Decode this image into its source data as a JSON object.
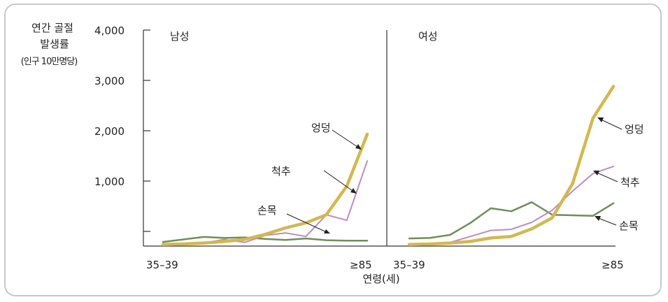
{
  "chart_data": [
    {
      "type": "line",
      "panel_label": "남성",
      "ylabel_lines": [
        "연간 골절",
        "발생률",
        "(인구 10만명당)"
      ],
      "xlabel": "연령(세)",
      "x_tick_labels": [
        "35–39",
        "≥85"
      ],
      "y_tick_labels": [
        "4,000",
        "3,000",
        "2,000",
        "1,000"
      ],
      "ylim": [
        -300,
        4000
      ],
      "x_range": [
        0,
        10
      ],
      "series": [
        {
          "name": "엉덩",
          "color": "#d4b84a",
          "x": [
            0,
            1,
            2,
            3,
            4,
            5,
            6,
            7,
            8,
            9,
            10
          ],
          "values": [
            -260,
            -250,
            -230,
            -200,
            -160,
            -60,
            70,
            170,
            330,
            900,
            1930
          ]
        },
        {
          "name": "척추",
          "color": "#b98cc4",
          "x": [
            0,
            1,
            2,
            3,
            4,
            5,
            6,
            7,
            8,
            9,
            10
          ],
          "values": [
            -250,
            -240,
            -230,
            -160,
            -220,
            -80,
            -30,
            -100,
            330,
            220,
            1400
          ]
        },
        {
          "name": "손목",
          "color": "#6f8f57",
          "x": [
            0,
            1,
            2,
            3,
            4,
            5,
            6,
            7,
            8,
            9,
            10
          ],
          "values": [
            -210,
            -160,
            -110,
            -130,
            -120,
            -150,
            -170,
            -140,
            -175,
            -185,
            -185
          ]
        }
      ]
    },
    {
      "type": "line",
      "panel_label": "여성",
      "x_tick_labels": [
        "35–39",
        "≥85"
      ],
      "ylim": [
        -300,
        4000
      ],
      "x_range": [
        0,
        10
      ],
      "series": [
        {
          "name": "엉덩",
          "color": "#d4b84a",
          "x": [
            0,
            1,
            2,
            3,
            4,
            5,
            6,
            7,
            8,
            9,
            10
          ],
          "values": [
            -260,
            -250,
            -230,
            -200,
            -130,
            -100,
            50,
            270,
            950,
            2250,
            2880
          ]
        },
        {
          "name": "척추",
          "color": "#b98cc4",
          "x": [
            0,
            1,
            2,
            3,
            4,
            5,
            6,
            7,
            8,
            9,
            10
          ],
          "values": [
            -250,
            -240,
            -220,
            -100,
            20,
            40,
            180,
            420,
            800,
            1150,
            1290
          ]
        },
        {
          "name": "손목",
          "color": "#6f8f57",
          "x": [
            0,
            1,
            2,
            3,
            4,
            5,
            6,
            7,
            8,
            9,
            10
          ],
          "values": [
            -140,
            -130,
            -70,
            170,
            460,
            400,
            580,
            330,
            320,
            310,
            560
          ]
        }
      ]
    }
  ]
}
